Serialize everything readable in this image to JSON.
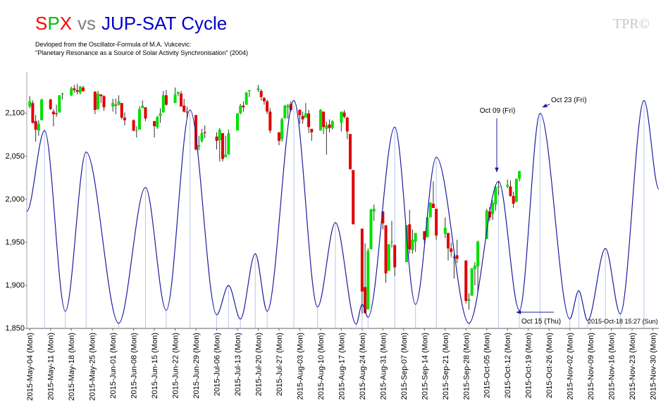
{
  "chart_data": {
    "type": "candlestick",
    "title_parts": [
      {
        "text": "S",
        "color": "#ff0000"
      },
      {
        "text": "P",
        "color": "#00c000"
      },
      {
        "text": "X",
        "color": "#ff0000"
      },
      {
        "text": "vs",
        "color": "#808080"
      },
      {
        "text": "JUP-SAT Cycle",
        "color": "#0000c8"
      }
    ],
    "subtitle": [
      {
        "text": "Devloped from the Oscillator-Formula of M.A. Vukcevic:",
        "color": "#0000c8"
      },
      {
        "text": "\"Planetary Resonance as a Source of Solar Activity Synchronisation\" (2004)",
        "color": "#cc0000"
      }
    ],
    "logo": "TPR©",
    "timestamp": "2015-Oct-18 15:27 (Sun)",
    "up_color": "#00e000",
    "down_color": "#e00000",
    "x": [
      "2015-05-04",
      "2015-05-05",
      "2015-05-06",
      "2015-05-07",
      "2015-05-08",
      "2015-05-11",
      "2015-05-12",
      "2015-05-13",
      "2015-05-14",
      "2015-05-15",
      "2015-05-18",
      "2015-05-19",
      "2015-05-20",
      "2015-05-21",
      "2015-05-22",
      "2015-05-26",
      "2015-05-27",
      "2015-05-28",
      "2015-05-29",
      "2015-06-01",
      "2015-06-02",
      "2015-06-03",
      "2015-06-04",
      "2015-06-05",
      "2015-06-08",
      "2015-06-09",
      "2015-06-10",
      "2015-06-11",
      "2015-06-12",
      "2015-06-15",
      "2015-06-16",
      "2015-06-17",
      "2015-06-18",
      "2015-06-19",
      "2015-06-22",
      "2015-06-23",
      "2015-06-24",
      "2015-06-25",
      "2015-06-26",
      "2015-06-29",
      "2015-06-30",
      "2015-07-01",
      "2015-07-02",
      "2015-07-06",
      "2015-07-07",
      "2015-07-08",
      "2015-07-09",
      "2015-07-10",
      "2015-07-13",
      "2015-07-14",
      "2015-07-15",
      "2015-07-16",
      "2015-07-17",
      "2015-07-20",
      "2015-07-21",
      "2015-07-22",
      "2015-07-23",
      "2015-07-24",
      "2015-07-27",
      "2015-07-28",
      "2015-07-29",
      "2015-07-30",
      "2015-07-31",
      "2015-08-03",
      "2015-08-04",
      "2015-08-05",
      "2015-08-06",
      "2015-08-07",
      "2015-08-10",
      "2015-08-11",
      "2015-08-12",
      "2015-08-13",
      "2015-08-14",
      "2015-08-17",
      "2015-08-18",
      "2015-08-19",
      "2015-08-20",
      "2015-08-21",
      "2015-08-24",
      "2015-08-25",
      "2015-08-26",
      "2015-08-27",
      "2015-08-28",
      "2015-08-31",
      "2015-09-01",
      "2015-09-02",
      "2015-09-03",
      "2015-09-04",
      "2015-09-08",
      "2015-09-09",
      "2015-09-10",
      "2015-09-11",
      "2015-09-14",
      "2015-09-15",
      "2015-09-16",
      "2015-09-17",
      "2015-09-18",
      "2015-09-21",
      "2015-09-22",
      "2015-09-23",
      "2015-09-24",
      "2015-09-25",
      "2015-09-28",
      "2015-09-29",
      "2015-09-30",
      "2015-10-01",
      "2015-10-02",
      "2015-10-05",
      "2015-10-06",
      "2015-10-07",
      "2015-10-08",
      "2015-10-09",
      "2015-10-12",
      "2015-10-13",
      "2015-10-14",
      "2015-10-15",
      "2015-10-16"
    ],
    "open": [
      2108,
      2112,
      2091,
      2080,
      2092,
      2116,
      2102,
      2100,
      2101,
      2122,
      2121,
      2129,
      2127,
      2124,
      2130,
      2125,
      2105,
      2122,
      2120,
      2108,
      2110,
      2110,
      2112,
      2095,
      2092,
      2080,
      2081,
      2106,
      2107,
      2091,
      2084,
      2097,
      2101,
      2121,
      2112,
      2123,
      2123,
      2109,
      2102,
      2098,
      2061,
      2068,
      2078,
      2073,
      2069,
      2077,
      2049,
      2052,
      2080,
      2100,
      2109,
      2110,
      2126,
      2127,
      2126,
      2118,
      2114,
      2102,
      2078,
      2070,
      2094,
      2107,
      2111,
      2104,
      2097,
      2095,
      2100,
      2082,
      2080,
      2102,
      2082,
      2087,
      2083,
      2089,
      2101,
      2095,
      2076,
      2034,
      1966,
      1898,
      1872,
      1942,
      1986,
      1986,
      1970,
      1917,
      1951,
      1947,
      1927,
      1971,
      1941,
      1951,
      1963,
      1956,
      1979,
      1995,
      1989,
      1960,
      1961,
      1943,
      1933,
      1935,
      1929,
      1882,
      1888,
      1919,
      1922,
      1954,
      1986,
      1983,
      1994,
      2014,
      2015,
      2015,
      2004,
      1997,
      2024
    ],
    "high": [
      2120,
      2115,
      2098,
      2092,
      2117,
      2117,
      2105,
      2110,
      2121,
      2124,
      2131,
      2133,
      2134,
      2132,
      2132,
      2126,
      2126,
      2122,
      2121,
      2117,
      2117,
      2121,
      2112,
      2101,
      2093,
      2085,
      2108,
      2115,
      2107,
      2091,
      2097,
      2106,
      2126,
      2127,
      2130,
      2125,
      2126,
      2117,
      2108,
      2098,
      2074,
      2082,
      2086,
      2078,
      2083,
      2077,
      2074,
      2081,
      2100,
      2111,
      2114,
      2125,
      2127,
      2133,
      2128,
      2119,
      2116,
      2106,
      2078,
      2095,
      2110,
      2111,
      2114,
      2105,
      2102,
      2112,
      2104,
      2082,
      2105,
      2102,
      2090,
      2093,
      2092,
      2102,
      2104,
      2096,
      2076,
      2034,
      1966,
      1949,
      1943,
      1989,
      1994,
      1986,
      1970,
      1948,
      1975,
      1947,
      1970,
      1988,
      1965,
      1961,
      1963,
      1983,
      1997,
      2021,
      1989,
      1979,
      1961,
      1950,
      1937,
      1953,
      1929,
      1891,
      1920,
      1927,
      1952,
      1989,
      1991,
      1999,
      2016,
      2021,
      2023,
      2022,
      2009,
      2024,
      2033
    ],
    "low": [
      2106,
      2088,
      2067,
      2074,
      2092,
      2104,
      2085,
      2096,
      2101,
      2116,
      2120,
      2124,
      2122,
      2122,
      2125,
      2099,
      2104,
      2112,
      2103,
      2102,
      2099,
      2109,
      2093,
      2086,
      2079,
      2072,
      2081,
      2106,
      2091,
      2072,
      2082,
      2089,
      2101,
      2109,
      2112,
      2120,
      2108,
      2101,
      2095,
      2057,
      2057,
      2066,
      2071,
      2058,
      2044,
      2044,
      2049,
      2052,
      2080,
      2099,
      2102,
      2110,
      2119,
      2125,
      2115,
      2110,
      2099,
      2077,
      2063,
      2067,
      2094,
      2094,
      2102,
      2088,
      2088,
      2095,
      2077,
      2068,
      2080,
      2076,
      2052,
      2078,
      2081,
      2079,
      2094,
      2070,
      2035,
      1971,
      1867,
      1867,
      1872,
      1942,
      1975,
      1965,
      1903,
      1917,
      1944,
      1911,
      1927,
      1937,
      1937,
      1939,
      1948,
      1956,
      1979,
      1991,
      1953,
      1955,
      1929,
      1933,
      1908,
      1926,
      1879,
      1872,
      1888,
      1900,
      1893,
      1954,
      1975,
      1976,
      1987,
      2005,
      2013,
      2003,
      1990,
      1997,
      2021
    ],
    "close": [
      2114,
      2089,
      2081,
      2088,
      2116,
      2105,
      2099,
      2099,
      2121,
      2123,
      2129,
      2127,
      2125,
      2131,
      2126,
      2104,
      2123,
      2120,
      2107,
      2112,
      2109,
      2114,
      2095,
      2092,
      2080,
      2080,
      2105,
      2109,
      2094,
      2085,
      2096,
      2100,
      2121,
      2110,
      2122,
      2125,
      2108,
      2102,
      2101,
      2058,
      2063,
      2077,
      2077,
      2068,
      2081,
      2047,
      2052,
      2077,
      2100,
      2109,
      2107,
      2124,
      2127,
      2129,
      2119,
      2114,
      2102,
      2080,
      2068,
      2093,
      2109,
      2109,
      2104,
      2098,
      2093,
      2100,
      2084,
      2078,
      2104,
      2084,
      2086,
      2083,
      2091,
      2102,
      2096,
      2079,
      2035,
      1971,
      1893,
      1868,
      1940,
      1988,
      1989,
      1972,
      1914,
      1948,
      1951,
      1921,
      1970,
      1942,
      1953,
      1961,
      1953,
      1979,
      1996,
      1990,
      1958,
      1967,
      1943,
      1939,
      1932,
      1931,
      1882,
      1884,
      1920,
      1923,
      1951,
      1987,
      1979,
      1996,
      2014,
      2015,
      2017,
      2004,
      1995,
      2024,
      2033
    ],
    "cycle": {
      "color": "#1c1ca0",
      "x": [
        "2015-05-03",
        "2015-05-09",
        "2015-05-16",
        "2015-05-23",
        "2015-06-03",
        "2015-06-12",
        "2015-06-19",
        "2015-06-27",
        "2015-07-06",
        "2015-07-10",
        "2015-07-14",
        "2015-07-19",
        "2015-07-23",
        "2015-08-01",
        "2015-08-09",
        "2015-08-15",
        "2015-08-22",
        "2015-08-24",
        "2015-08-26",
        "2015-09-04",
        "2015-09-11",
        "2015-09-18",
        "2015-09-29",
        "2015-10-09",
        "2015-10-16",
        "2015-10-23",
        "2015-11-02",
        "2015-11-05",
        "2015-11-08",
        "2015-11-14",
        "2015-11-19",
        "2015-11-27",
        "2015-12-02"
      ],
      "values": [
        1986,
        2080,
        1870,
        2055,
        1856,
        2014,
        1871,
        2104,
        1866,
        1900,
        1861,
        1937,
        1870,
        2115,
        1875,
        1973,
        1855,
        1878,
        1863,
        2084,
        1878,
        2049,
        1856,
        2021,
        1871,
        2100,
        1861,
        1894,
        1859,
        1943,
        1867,
        2115,
        2012
      ]
    },
    "annotations": [
      {
        "text": "Oct 09 (Fri)"
      },
      {
        "text": "Oct 23 (Fri)"
      },
      {
        "text": "Oct 15 (Thu)"
      }
    ],
    "xlim": [
      "2015-05-03",
      "2015-12-02"
    ],
    "ylim": [
      1850,
      2140
    ],
    "yticks": [
      {
        "value": 1850,
        "label": "1,850"
      },
      {
        "value": 1900,
        "label": "1,900"
      },
      {
        "value": 1950,
        "label": "1,950"
      },
      {
        "value": 2000,
        "label": "2,000"
      },
      {
        "value": 2050,
        "label": "2,050"
      },
      {
        "value": 2100,
        "label": "2,100"
      }
    ],
    "xticks": [
      {
        "value": "2015-05-04",
        "label": "2015-May-04 (Mon)"
      },
      {
        "value": "2015-05-11",
        "label": "2015-May-11 (Mon)"
      },
      {
        "value": "2015-05-18",
        "label": "2015-May-18 (Mon)"
      },
      {
        "value": "2015-05-25",
        "label": "2015-May-25 (Mon)"
      },
      {
        "value": "2015-06-01",
        "label": "2015-Jun-01 (Mon)"
      },
      {
        "value": "2015-06-08",
        "label": "2015-Jun-08 (Mon)"
      },
      {
        "value": "2015-06-15",
        "label": "2015-Jun-15 (Mon)"
      },
      {
        "value": "2015-06-22",
        "label": "2015-Jun-22 (Mon)"
      },
      {
        "value": "2015-06-29",
        "label": "2015-Jun-29 (Mon)"
      },
      {
        "value": "2015-07-06",
        "label": "2015-Jul-06 (Mon)"
      },
      {
        "value": "2015-07-13",
        "label": "2015-Jul-13 (Mon)"
      },
      {
        "value": "2015-07-20",
        "label": "2015-Jul-20 (Mon)"
      },
      {
        "value": "2015-07-27",
        "label": "2015-Jul-27 (Mon)"
      },
      {
        "value": "2015-08-03",
        "label": "2015-Aug-03 (Mon)"
      },
      {
        "value": "2015-08-10",
        "label": "2015-Aug-10 (Mon)"
      },
      {
        "value": "2015-08-17",
        "label": "2015-Aug-17 (Mon)"
      },
      {
        "value": "2015-08-24",
        "label": "2015-Aug-24 (Mon)"
      },
      {
        "value": "2015-08-31",
        "label": "2015-Aug-31 (Mon)"
      },
      {
        "value": "2015-09-07",
        "label": "2015-Sep-07 (Mon)"
      },
      {
        "value": "2015-09-14",
        "label": "2015-Sep-14 (Mon)"
      },
      {
        "value": "2015-09-21",
        "label": "2015-Sep-21 (Mon)"
      },
      {
        "value": "2015-09-28",
        "label": "2015-Sep-28 (Mon)"
      },
      {
        "value": "2015-10-05",
        "label": "2015-Oct-05 (Mon)"
      },
      {
        "value": "2015-10-12",
        "label": "2015-Oct-12 (Mon)"
      },
      {
        "value": "2015-10-19",
        "label": "2015-Oct-19 (Mon)"
      },
      {
        "value": "2015-10-26",
        "label": "2015-Oct-26 (Mon)"
      },
      {
        "value": "2015-11-02",
        "label": "2015-Nov-02 (Mon)"
      },
      {
        "value": "2015-11-09",
        "label": "2015-Nov-09 (Mon)"
      },
      {
        "value": "2015-11-16",
        "label": "2015-Nov-16 (Mon)"
      },
      {
        "value": "2015-11-23",
        "label": "2015-Nov-23 (Mon)"
      },
      {
        "value": "2015-11-30",
        "label": "2015-Nov-30 (Mon)"
      }
    ]
  }
}
